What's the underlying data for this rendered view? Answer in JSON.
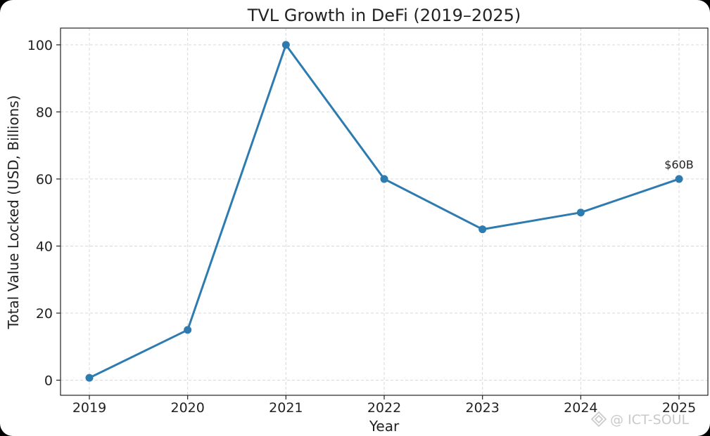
{
  "chart_data": {
    "type": "line",
    "title": "TVL Growth in DeFi (2019–2025)",
    "xlabel": "Year",
    "ylabel": "Total Value Locked (USD, Billions)",
    "x": [
      "2019",
      "2020",
      "2021",
      "2022",
      "2023",
      "2024",
      "2025"
    ],
    "y": [
      0.7,
      15,
      100,
      60,
      45,
      50,
      60
    ],
    "ylim": [
      -4.5,
      105
    ],
    "yticks": [
      0,
      20,
      40,
      60,
      80,
      100
    ],
    "grid": true,
    "line_color": "#2e7bb0",
    "annotations": [
      {
        "x": "2025",
        "y": 60,
        "text": "$60B"
      }
    ]
  },
  "watermark": {
    "text": "@ ICT-SOUL",
    "icon": "diamond-logo-icon"
  }
}
